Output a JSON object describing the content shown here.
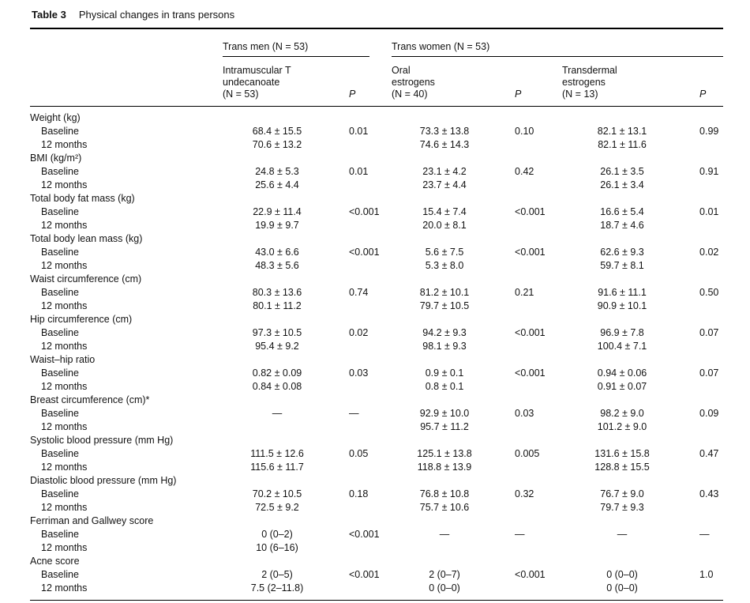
{
  "title": {
    "label": "Table 3",
    "caption": "Physical changes in trans persons"
  },
  "table": {
    "group_headers": [
      {
        "label": "Trans men (N = 53)"
      },
      {
        "label": "Trans women (N = 53)"
      }
    ],
    "column_headers": [
      {
        "lines": [
          "Intramuscular T",
          "undecanoate",
          "(N = 53)"
        ]
      },
      {
        "label": "P"
      },
      {
        "lines": [
          "Oral",
          "estrogens",
          "(N = 40)"
        ]
      },
      {
        "label": "P"
      },
      {
        "lines": [
          "Transdermal",
          "estrogens",
          "(N = 13)"
        ]
      },
      {
        "label": "P"
      }
    ],
    "sections": [
      {
        "label": "Weight (kg)",
        "rows": [
          {
            "label": "Baseline",
            "cells": [
              "68.4 ± 15.5",
              "0.01",
              "73.3 ± 13.8",
              "0.10",
              "82.1 ± 13.1",
              "0.99"
            ]
          },
          {
            "label": "12 months",
            "cells": [
              "70.6 ± 13.2",
              "",
              "74.6 ± 14.3",
              "",
              "82.1 ± 11.6",
              ""
            ]
          }
        ]
      },
      {
        "label": "BMI (kg/m²)",
        "rows": [
          {
            "label": "Baseline",
            "cells": [
              "24.8 ± 5.3",
              "0.01",
              "23.1 ± 4.2",
              "0.42",
              "26.1 ± 3.5",
              "0.91"
            ]
          },
          {
            "label": "12 months",
            "cells": [
              "25.6 ± 4.4",
              "",
              "23.7 ± 4.4",
              "",
              "26.1 ± 3.4",
              ""
            ]
          }
        ]
      },
      {
        "label": "Total body fat mass (kg)",
        "rows": [
          {
            "label": "Baseline",
            "cells": [
              "22.9 ± 11.4",
              "<0.001",
              "15.4 ± 7.4",
              "<0.001",
              "16.6 ± 5.4",
              "0.01"
            ]
          },
          {
            "label": "12 months",
            "cells": [
              "19.9 ± 9.7",
              "",
              "20.0 ± 8.1",
              "",
              "18.7 ± 4.6",
              ""
            ]
          }
        ]
      },
      {
        "label": "Total body lean mass (kg)",
        "rows": [
          {
            "label": "Baseline",
            "cells": [
              "43.0 ± 6.6",
              "<0.001",
              "5.6 ± 7.5",
              "<0.001",
              "62.6 ± 9.3",
              "0.02"
            ]
          },
          {
            "label": "12 months",
            "cells": [
              "48.3 ± 5.6",
              "",
              "5.3 ± 8.0",
              "",
              "59.7 ± 8.1",
              ""
            ]
          }
        ]
      },
      {
        "label": "Waist circumference (cm)",
        "rows": [
          {
            "label": "Baseline",
            "cells": [
              "80.3 ± 13.6",
              "0.74",
              "81.2 ± 10.1",
              "0.21",
              "91.6 ± 11.1",
              "0.50"
            ]
          },
          {
            "label": "12 months",
            "cells": [
              "80.1 ± 11.2",
              "",
              "79.7 ± 10.5",
              "",
              "90.9 ± 10.1",
              ""
            ]
          }
        ]
      },
      {
        "label": "Hip circumference (cm)",
        "rows": [
          {
            "label": "Baseline",
            "cells": [
              "97.3 ± 10.5",
              "0.02",
              "94.2 ± 9.3",
              "<0.001",
              "96.9 ± 7.8",
              "0.07"
            ]
          },
          {
            "label": "12 months",
            "cells": [
              "95.4 ± 9.2",
              "",
              "98.1 ± 9.3",
              "",
              "100.4 ± 7.1",
              ""
            ]
          }
        ]
      },
      {
        "label": "Waist–hip ratio",
        "rows": [
          {
            "label": "Baseline",
            "cells": [
              "0.82 ± 0.09",
              "0.03",
              "0.9 ± 0.1",
              "<0.001",
              "0.94 ± 0.06",
              "0.07"
            ]
          },
          {
            "label": "12 months",
            "cells": [
              "0.84 ± 0.08",
              "",
              "0.8 ± 0.1",
              "",
              "0.91 ± 0.07",
              ""
            ]
          }
        ]
      },
      {
        "label": "Breast circumference (cm)*",
        "rows": [
          {
            "label": "Baseline",
            "cells": [
              "—",
              "—",
              "92.9 ± 10.0",
              "0.03",
              "98.2 ± 9.0",
              "0.09"
            ]
          },
          {
            "label": "12 months",
            "cells": [
              "",
              "",
              "95.7 ± 11.2",
              "",
              "101.2 ± 9.0",
              ""
            ]
          }
        ]
      },
      {
        "label": "Systolic blood pressure (mm Hg)",
        "rows": [
          {
            "label": "Baseline",
            "cells": [
              "111.5 ± 12.6",
              "0.05",
              "125.1 ± 13.8",
              "0.005",
              "131.6 ± 15.8",
              "0.47"
            ]
          },
          {
            "label": "12 months",
            "cells": [
              "115.6 ± 11.7",
              "",
              "118.8 ± 13.9",
              "",
              "128.8 ± 15.5",
              ""
            ]
          }
        ]
      },
      {
        "label": "Diastolic blood pressure (mm Hg)",
        "rows": [
          {
            "label": "Baseline",
            "cells": [
              "70.2 ± 10.5",
              "0.18",
              "76.8 ± 10.8",
              "0.32",
              "76.7 ± 9.0",
              "0.43"
            ]
          },
          {
            "label": "12 months",
            "cells": [
              "72.5 ± 9.2",
              "",
              "75.7 ± 10.6",
              "",
              "79.7 ± 9.3",
              ""
            ]
          }
        ]
      },
      {
        "label": "Ferriman and Gallwey score",
        "rows": [
          {
            "label": "Baseline",
            "cells": [
              "0 (0–2)",
              "<0.001",
              "—",
              "—",
              "—",
              "—"
            ]
          },
          {
            "label": "12 months",
            "cells": [
              "10 (6–16)",
              "",
              "",
              "",
              "",
              ""
            ]
          }
        ]
      },
      {
        "label": "Acne score",
        "rows": [
          {
            "label": "Baseline",
            "cells": [
              "2 (0–5)",
              "<0.001",
              "2 (0–7)",
              "<0.001",
              "0 (0–0)",
              "1.0"
            ]
          },
          {
            "label": "12 months",
            "cells": [
              "7.5 (2–11.8)",
              "",
              "0 (0–0)",
              "",
              "0 (0–0)",
              ""
            ]
          }
        ]
      }
    ]
  }
}
